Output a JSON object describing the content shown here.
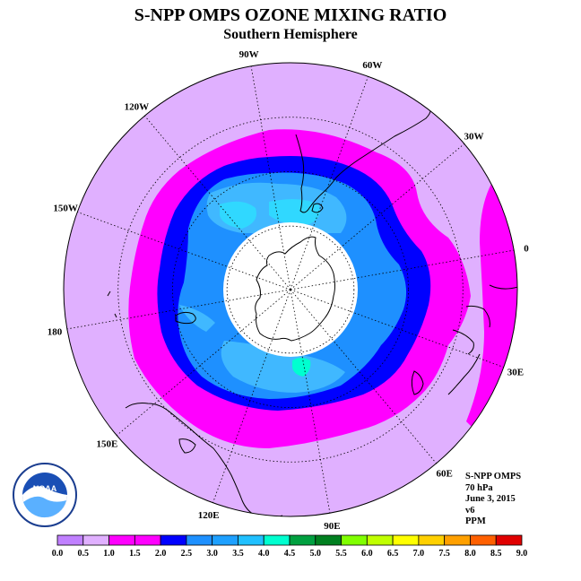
{
  "title": "S-NPP OMPS OZONE MIXING RATIO",
  "subtitle": "Southern Hemisphere",
  "meridian_labels": [
    "90W",
    "60W",
    "30W",
    "0",
    "30E",
    "60E",
    "90E",
    "120E",
    "150E",
    "180",
    "150W",
    "120W"
  ],
  "info": {
    "instrument": "S-NPP OMPS",
    "level": "70 hPa",
    "date": "June 3, 2015",
    "version": "v6",
    "units": "PPM"
  },
  "logo": {
    "text": "NOAA",
    "ring_text": "NATIONAL OCEANIC AND ATMOSPHERIC ADMINISTRATION U.S. DEPARTMENT OF COMMERCE"
  },
  "colorbar": {
    "ticks": [
      "0.0",
      "0.5",
      "1.0",
      "1.5",
      "2.0",
      "2.5",
      "3.0",
      "3.5",
      "4.0",
      "4.5",
      "5.0",
      "5.5",
      "6.0",
      "6.5",
      "7.0",
      "7.5",
      "8.0",
      "8.5",
      "9.0"
    ],
    "colors": [
      "#c080ff",
      "#e0b0ff",
      "#ff00ff",
      "#ff00ff",
      "#0000ff",
      "#1e90ff",
      "#1ea0ff",
      "#20c0ff",
      "#00ffd0",
      "#00a040",
      "#008020",
      "#80ff00",
      "#c0ff00",
      "#ffff00",
      "#ffd000",
      "#ffa000",
      "#ff6000",
      "#e00000",
      "#806040"
    ]
  },
  "map_colors": {
    "bg": "#e0b0ff",
    "magenta": "#ff00ff",
    "dark_blue": "#0000ff",
    "mid_blue": "#1e90ff",
    "light_blue": "#40b8ff",
    "cyan": "#30d8ff",
    "teal": "#00ffd0"
  }
}
